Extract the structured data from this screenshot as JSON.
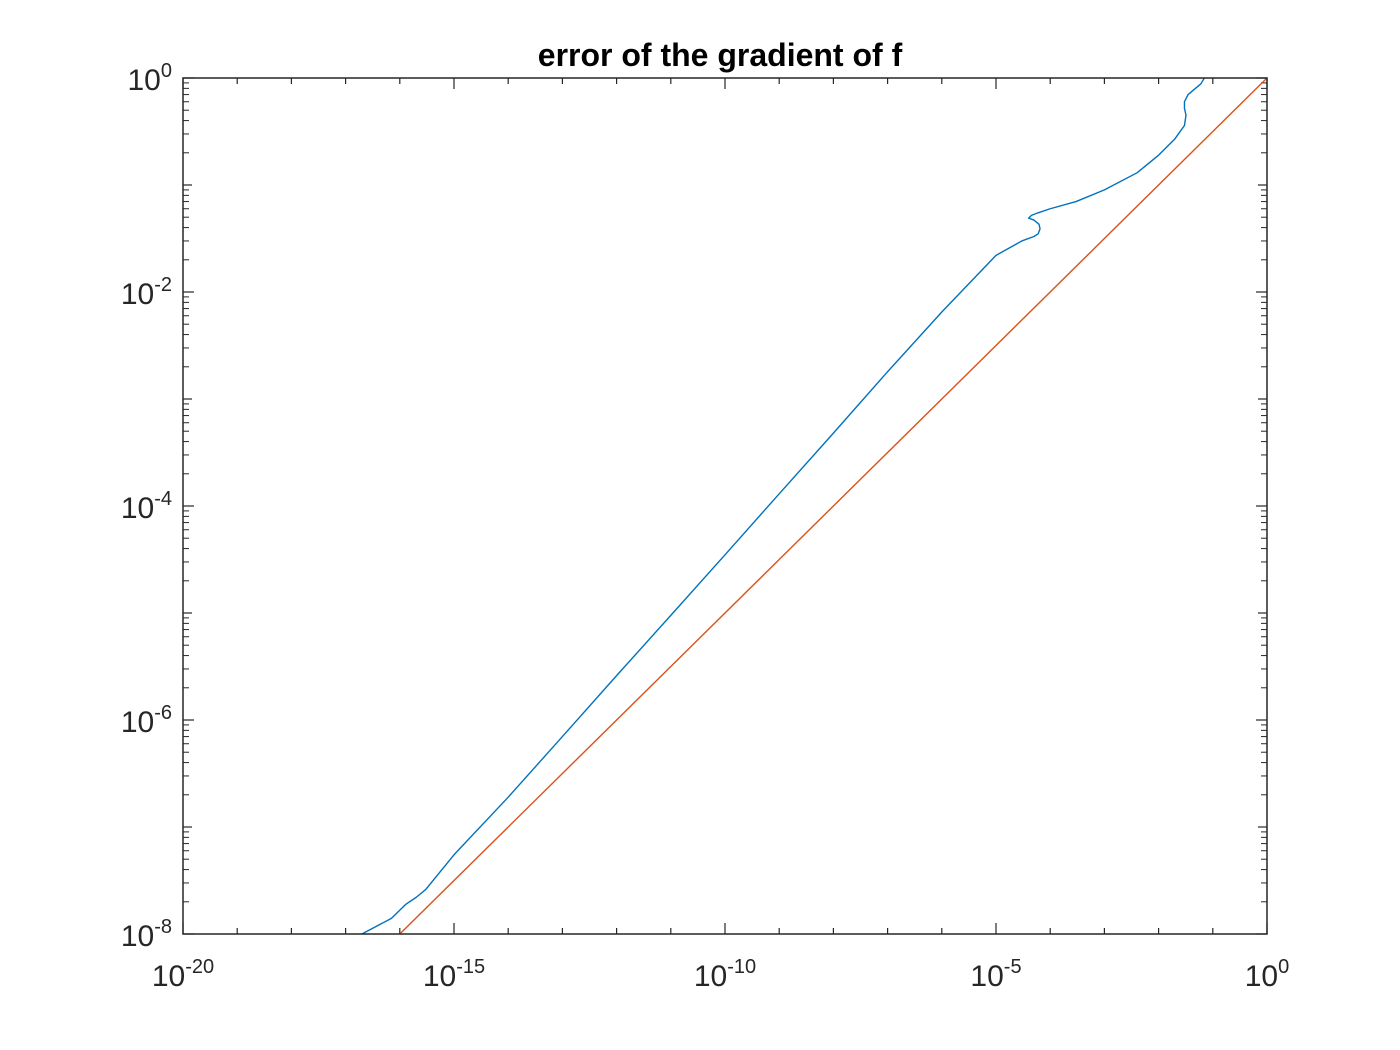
{
  "chart_data": {
    "type": "line",
    "title": "error of the gradient of f",
    "xlabel": "",
    "ylabel": "",
    "xscale": "log",
    "yscale": "log",
    "xlim": [
      1e-20,
      1
    ],
    "ylim": [
      1e-08,
      1
    ],
    "grid": false,
    "legend": "none",
    "x_ticks": [
      {
        "base": "10",
        "exp": "-20"
      },
      {
        "base": "10",
        "exp": "-15"
      },
      {
        "base": "10",
        "exp": "-10"
      },
      {
        "base": "10",
        "exp": "-5"
      },
      {
        "base": "10",
        "exp": "0"
      }
    ],
    "y_ticks": [
      {
        "base": "10",
        "exp": "-8"
      },
      {
        "base": "10",
        "exp": "-6"
      },
      {
        "base": "10",
        "exp": "-4"
      },
      {
        "base": "10",
        "exp": "-2"
      },
      {
        "base": "10",
        "exp": "0"
      }
    ],
    "series": [
      {
        "color": "#0072BD",
        "x": [
          2e-17,
          7e-17,
          1.3e-16,
          2e-16,
          3e-16,
          1e-15,
          1e-14,
          1e-13,
          1e-12,
          1e-11,
          1e-10,
          1e-09,
          1e-08,
          1e-07,
          1e-06,
          1e-05,
          3e-05,
          5e-05,
          6e-05,
          6.5e-05,
          6.2e-05,
          5e-05,
          4e-05,
          4.5e-05,
          6e-05,
          0.0001,
          0.0003,
          0.001,
          0.004,
          0.01,
          0.02,
          0.03,
          0.032,
          0.03,
          0.03,
          0.035,
          0.045,
          0.06,
          0.07
        ],
        "y": [
          1e-08,
          1.4e-08,
          1.9e-08,
          2.2e-08,
          2.6e-08,
          5.5e-08,
          1.9e-07,
          7e-07,
          2.6e-06,
          9.5e-06,
          3.5e-05,
          0.00013,
          0.00048,
          0.0018,
          0.0065,
          0.022,
          0.03,
          0.033,
          0.035,
          0.039,
          0.043,
          0.047,
          0.049,
          0.052,
          0.055,
          0.06,
          0.07,
          0.09,
          0.13,
          0.19,
          0.27,
          0.36,
          0.45,
          0.52,
          0.6,
          0.7,
          0.78,
          0.88,
          1.0
        ]
      },
      {
        "color": "#D95319",
        "x": [
          1e-16,
          1
        ],
        "y": [
          1e-08,
          1
        ]
      }
    ]
  }
}
